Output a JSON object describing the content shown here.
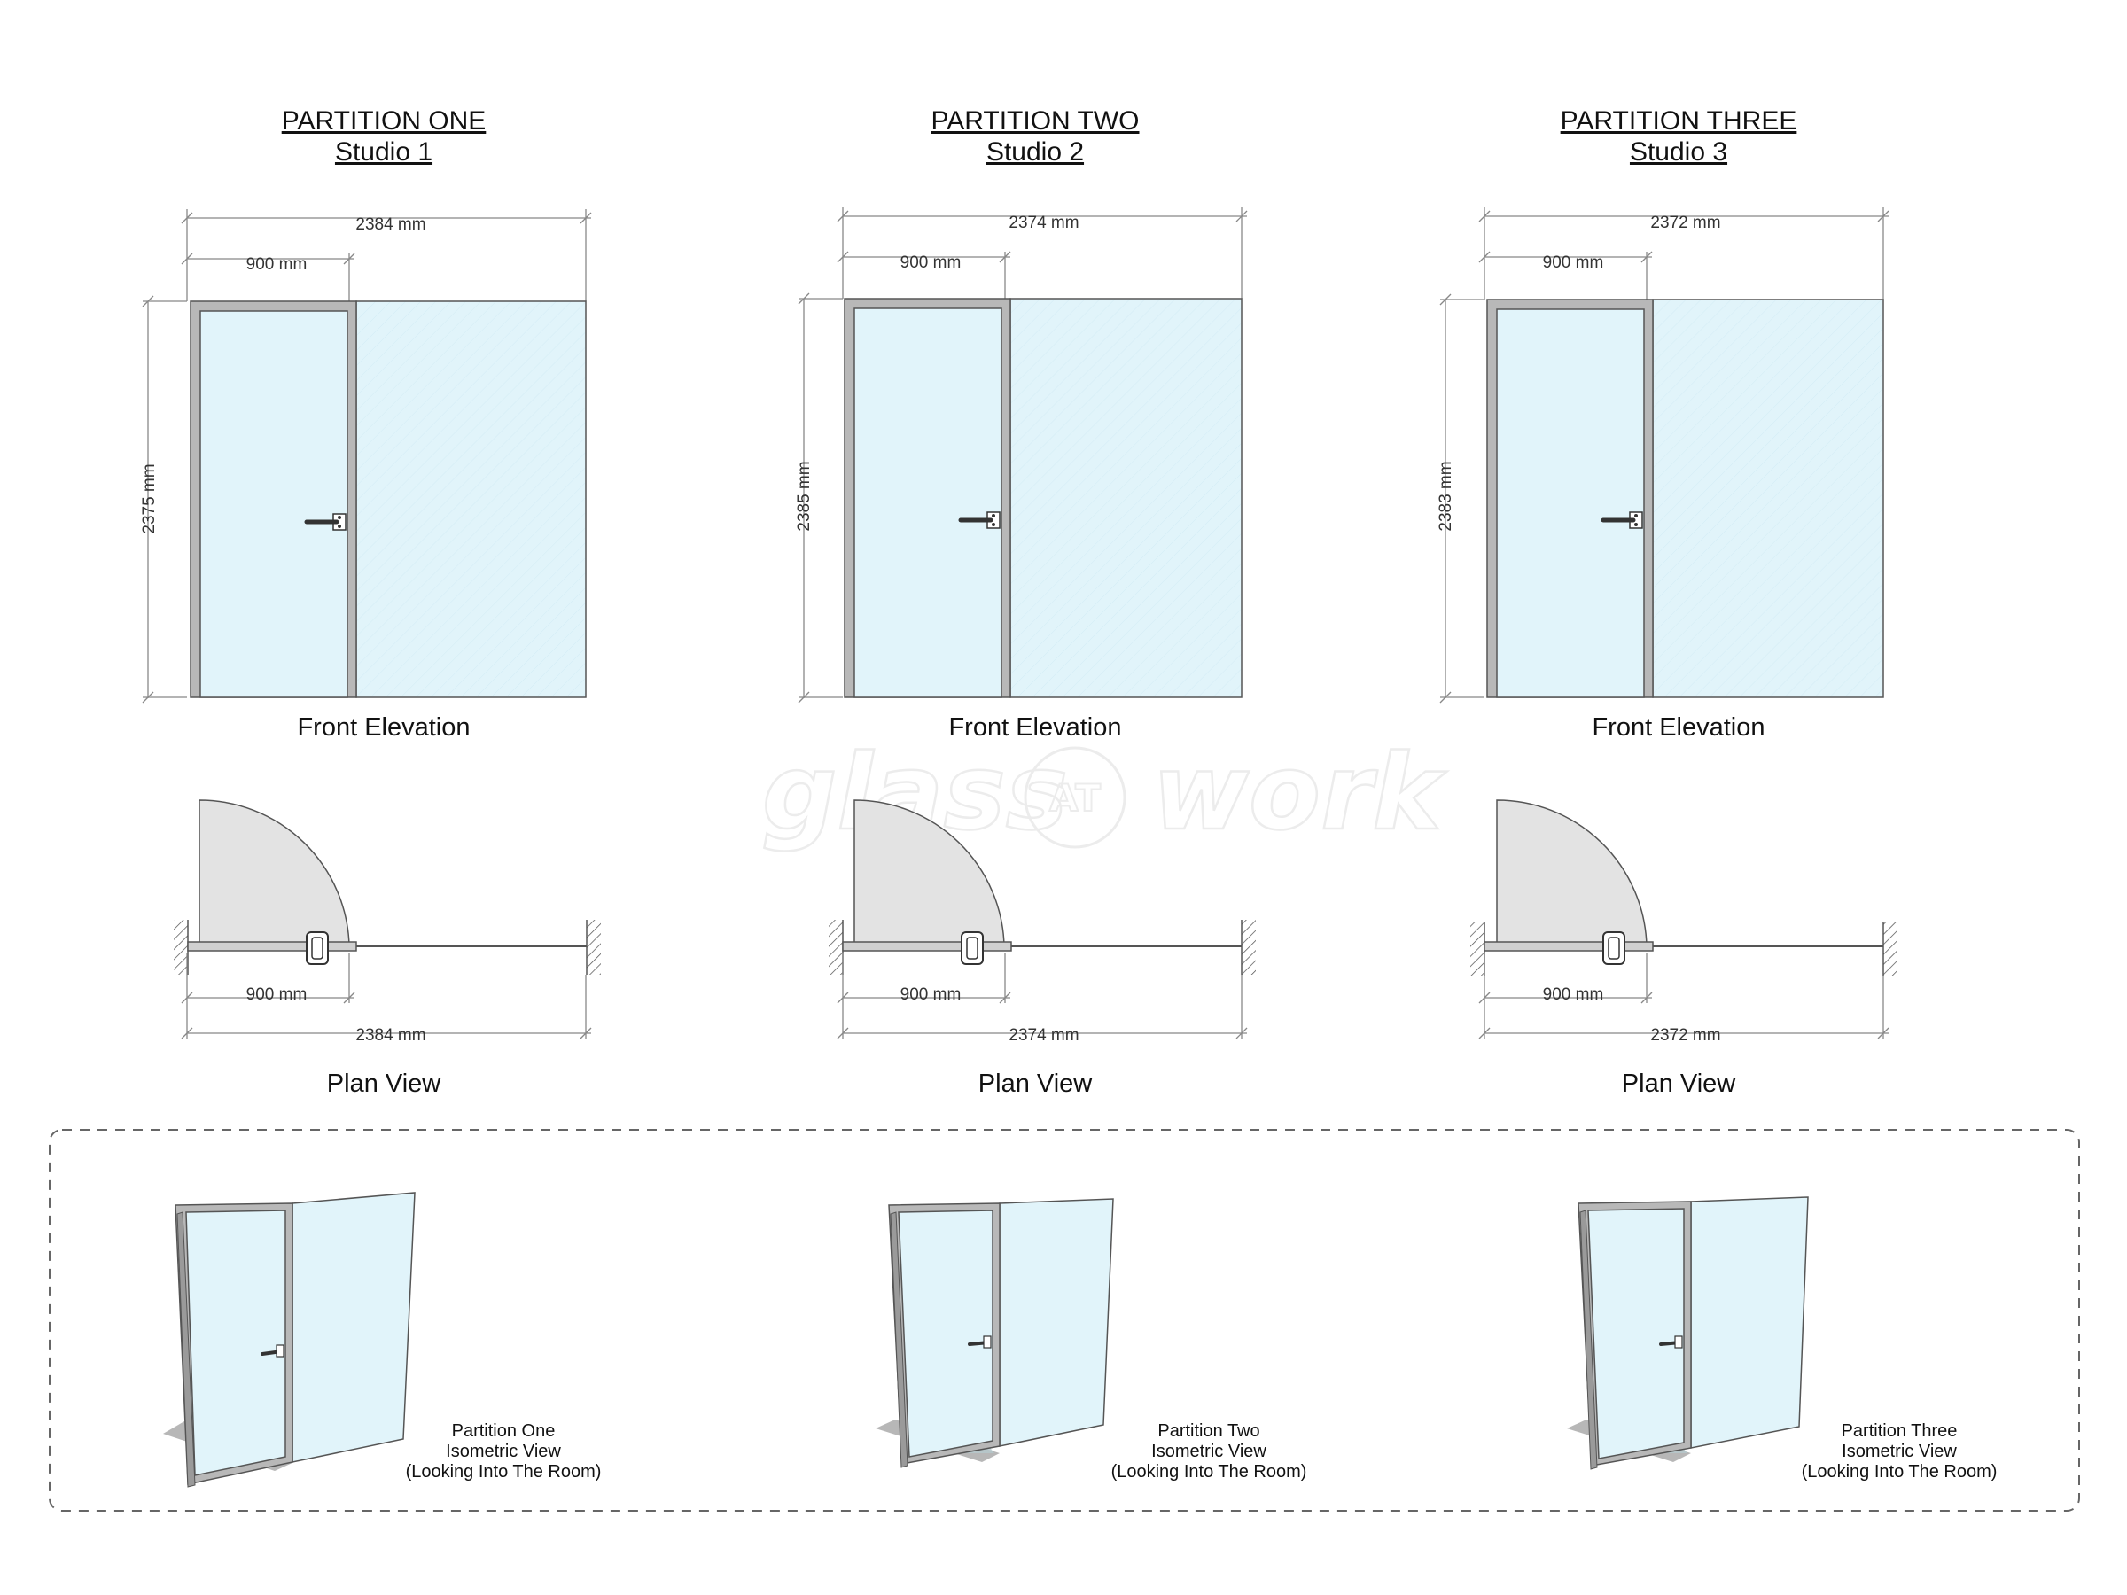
{
  "watermark": {
    "left": "glass",
    "middle": "AT",
    "right": "work"
  },
  "partitions": [
    {
      "title": "PARTITION ONE",
      "subtitle": "Studio 1",
      "overall_width": "2384 mm",
      "door_width": "900 mm",
      "height": "2375 mm",
      "front_caption": "Front Elevation",
      "plan_caption": "Plan View",
      "plan_door_width": "900 mm",
      "plan_overall_width": "2384 mm",
      "iso_label": [
        "Partition One",
        "Isometric View",
        "(Looking Into The Room)"
      ]
    },
    {
      "title": "PARTITION TWO",
      "subtitle": "Studio 2",
      "overall_width": "2374 mm",
      "door_width": "900 mm",
      "height": "2385 mm",
      "front_caption": "Front Elevation",
      "plan_caption": "Plan View",
      "plan_door_width": "900 mm",
      "plan_overall_width": "2374 mm",
      "iso_label": [
        "Partition Two",
        "Isometric View",
        "(Looking Into The Room)"
      ]
    },
    {
      "title": "PARTITION THREE",
      "subtitle": "Studio 3",
      "overall_width": "2372 mm",
      "door_width": "900 mm",
      "height": "2383 mm",
      "front_caption": "Front Elevation",
      "plan_caption": "Plan View",
      "plan_door_width": "900 mm",
      "plan_overall_width": "2372 mm",
      "iso_label": [
        "Partition Three",
        "Isometric View",
        "(Looking Into The Room)"
      ]
    }
  ],
  "colors": {
    "glass": "#e1f4fa",
    "frame": "#b8b8b8",
    "frame_stroke": "#555555",
    "swing": "#e3e3e3",
    "dimension": "#888888",
    "dashed_box": "#666666"
  }
}
